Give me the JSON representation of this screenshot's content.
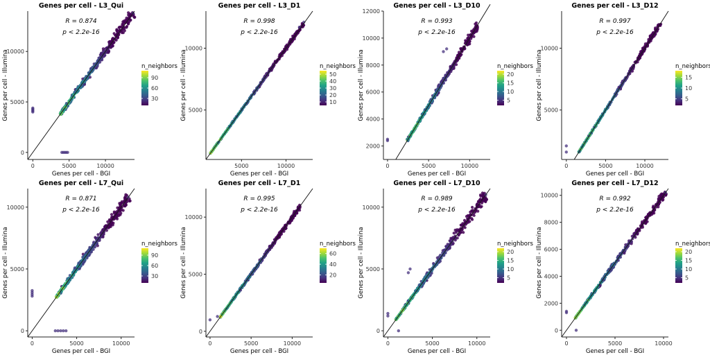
{
  "figure_title": "Genes per cell scatter plots",
  "colors": {
    "viridis": [
      "#440154",
      "#46327e",
      "#365c8d",
      "#277f8e",
      "#1fa187",
      "#4ac16d",
      "#a0da39",
      "#fde725"
    ],
    "line": "#1a1a1a",
    "axis": "#222222",
    "text": "#000000"
  },
  "chart_data": [
    {
      "type": "scatter",
      "title": "Genes per cell - L3_Qui",
      "xlabel": "Genes per cell - BGI",
      "ylabel": "Genes per cell - Illumina",
      "r_label": "R = 0.874",
      "p_label": "p < 2.2e-16",
      "R": 0.874,
      "xlim": [
        -700,
        14000
      ],
      "ylim": [
        -700,
        14000
      ],
      "xticks": [
        0,
        5000,
        10000
      ],
      "yticks": [
        0,
        5000,
        10000
      ],
      "xtick_labels": [
        "0",
        "5000",
        "10000"
      ],
      "ytick_labels": [
        "0",
        "5000",
        "10000"
      ],
      "legend": {
        "title": "n_neighbors",
        "min": 10,
        "max": 110,
        "ticks": [
          90,
          60,
          30
        ],
        "tick_labels": [
          "90",
          "60",
          "30"
        ]
      },
      "identity_line": [
        [
          -700,
          -700
        ],
        [
          14000,
          14000
        ]
      ],
      "cloud": {
        "from": 3800,
        "to": 13800,
        "spread": 0.05
      },
      "outliers": [
        [
          0,
          4000
        ],
        [
          0,
          4100
        ],
        [
          0,
          4200
        ],
        [
          0,
          4300
        ],
        [
          0,
          4400
        ],
        [
          4000,
          0
        ],
        [
          4200,
          0
        ],
        [
          4400,
          0
        ],
        [
          4600,
          0
        ],
        [
          4800,
          0
        ],
        [
          13800,
          13800
        ]
      ]
    },
    {
      "type": "scatter",
      "title": "Genes per cell - L3_D1",
      "xlabel": "Genes per cell - BGI",
      "ylabel": "Genes per cell - Illumina",
      "r_label": "R = 0.998",
      "p_label": "p < 2.2e-16",
      "R": 0.998,
      "xlim": [
        1000,
        13000
      ],
      "ylim": [
        1000,
        13000
      ],
      "xticks": [
        5000,
        10000
      ],
      "yticks": [
        5000,
        10000
      ],
      "xtick_labels": [
        "5000",
        "10000"
      ],
      "ytick_labels": [
        "5000",
        "10000"
      ],
      "legend": {
        "title": "n_neighbors",
        "min": 5,
        "max": 55,
        "ticks": [
          50,
          40,
          30,
          20,
          10
        ],
        "tick_labels": [
          "50",
          "40",
          "30",
          "20",
          "10"
        ]
      },
      "identity_line": [
        [
          1000,
          1000
        ],
        [
          13000,
          13000
        ]
      ],
      "cloud": {
        "from": 1500,
        "to": 12000,
        "spread": 0.02
      },
      "outliers": [
        [
          11500,
          11700
        ],
        [
          12000,
          12100
        ]
      ]
    },
    {
      "type": "scatter",
      "title": "Genes per cell - L3_D10",
      "xlabel": "Genes per cell - BGI",
      "ylabel": "Genes per cell - Illumina",
      "r_label": "R = 0.993",
      "p_label": "p < 2.2e-16",
      "R": 0.993,
      "xlim": [
        -500,
        12500
      ],
      "ylim": [
        1000,
        12000
      ],
      "xticks": [
        0,
        5000,
        10000
      ],
      "yticks": [
        2000,
        4000,
        6000,
        8000,
        10000,
        12000
      ],
      "xtick_labels": [
        "0",
        "5000",
        "10000"
      ],
      "ytick_labels": [
        "2000",
        "4000",
        "6000",
        "8000",
        "10000",
        "12000"
      ],
      "legend": {
        "title": "n_neighbors",
        "min": 2,
        "max": 22,
        "ticks": [
          20,
          15,
          10,
          5
        ],
        "tick_labels": [
          "20",
          "15",
          "10",
          "5"
        ]
      },
      "identity_line": [
        [
          1000,
          1000
        ],
        [
          12500,
          12500
        ]
      ],
      "cloud": {
        "from": 2400,
        "to": 11000,
        "spread": 0.04
      },
      "outliers": [
        [
          0,
          2400
        ],
        [
          0,
          2500
        ],
        [
          6800,
          9000
        ],
        [
          7200,
          9200
        ]
      ]
    },
    {
      "type": "scatter",
      "title": "Genes per cell - L3_D12",
      "xlabel": "Genes per cell - BGI",
      "ylabel": "Genes per cell - Illumina",
      "r_label": "R = 0.997",
      "p_label": "p < 2.2e-16",
      "R": 0.997,
      "xlim": [
        -600,
        13000
      ],
      "ylim": [
        1000,
        13000
      ],
      "xticks": [
        0,
        5000,
        10000
      ],
      "yticks": [
        5000,
        10000
      ],
      "xtick_labels": [
        "0",
        "5000",
        "10000"
      ],
      "ytick_labels": [
        "5000",
        "10000"
      ],
      "legend": {
        "title": "n_neighbors",
        "min": 2,
        "max": 18,
        "ticks": [
          15,
          10,
          5
        ],
        "tick_labels": [
          "15",
          "10",
          "5"
        ]
      },
      "identity_line": [
        [
          1000,
          1000
        ],
        [
          13000,
          13000
        ]
      ],
      "cloud": {
        "from": 1600,
        "to": 12000,
        "spread": 0.025
      },
      "outliers": [
        [
          0,
          1600
        ],
        [
          0,
          2100
        ]
      ]
    },
    {
      "type": "scatter",
      "title": "Genes per cell - L7_Qui",
      "xlabel": "Genes per cell - BGI",
      "ylabel": "Genes per cell - Illumina",
      "r_label": "R = 0.871",
      "p_label": "p < 2.2e-16",
      "R": 0.871,
      "xlim": [
        -500,
        11500
      ],
      "ylim": [
        -500,
        11500
      ],
      "xticks": [
        0,
        5000,
        10000
      ],
      "yticks": [
        0,
        5000,
        10000
      ],
      "xtick_labels": [
        "0",
        "5000",
        "10000"
      ],
      "ytick_labels": [
        "0",
        "5000",
        "10000"
      ],
      "legend": {
        "title": "n_neighbors",
        "min": 10,
        "max": 110,
        "ticks": [
          90,
          60,
          30
        ],
        "tick_labels": [
          "90",
          "60",
          "30"
        ]
      },
      "identity_line": [
        [
          -500,
          -500
        ],
        [
          11500,
          11500
        ]
      ],
      "cloud": {
        "from": 2700,
        "to": 10800,
        "spread": 0.06
      },
      "outliers": [
        [
          0,
          2800
        ],
        [
          0,
          2950
        ],
        [
          0,
          3100
        ],
        [
          0,
          3250
        ],
        [
          2600,
          0
        ],
        [
          2900,
          0
        ],
        [
          3200,
          0
        ],
        [
          3500,
          0
        ],
        [
          3800,
          0
        ],
        [
          10800,
          10800
        ]
      ]
    },
    {
      "type": "scatter",
      "title": "Genes per cell - L7_D1",
      "xlabel": "Genes per cell - BGI",
      "ylabel": "Genes per cell - Illumina",
      "r_label": "R = 0.995",
      "p_label": "p < 2.2e-16",
      "R": 0.995,
      "xlim": [
        -500,
        12500
      ],
      "ylim": [
        -500,
        12500
      ],
      "xticks": [
        0,
        5000,
        10000
      ],
      "yticks": [
        0,
        5000,
        10000
      ],
      "xtick_labels": [
        "0",
        "5000",
        "10000"
      ],
      "ytick_labels": [
        "0",
        "5000",
        "10000"
      ],
      "legend": {
        "title": "n_neighbors",
        "min": 5,
        "max": 70,
        "ticks": [
          60,
          40,
          20
        ],
        "tick_labels": [
          "60",
          "40",
          "20"
        ]
      },
      "identity_line": [
        [
          -500,
          -500
        ],
        [
          12500,
          12500
        ]
      ],
      "cloud": {
        "from": 1200,
        "to": 11000,
        "spread": 0.03
      },
      "outliers": [
        [
          0,
          1000
        ],
        [
          900,
          1300
        ]
      ]
    },
    {
      "type": "scatter",
      "title": "Genes per cell - L7_D10",
      "xlabel": "Genes per cell - BGI",
      "ylabel": "Genes per cell - Illumina",
      "r_label": "R = 0.989",
      "p_label": "p < 2.2e-16",
      "R": 0.989,
      "xlim": [
        -500,
        11500
      ],
      "ylim": [
        -500,
        11500
      ],
      "xticks": [
        0,
        5000,
        10000
      ],
      "yticks": [
        0,
        5000,
        10000
      ],
      "xtick_labels": [
        "0",
        "5000",
        "10000"
      ],
      "ytick_labels": [
        "0",
        "5000",
        "10000"
      ],
      "legend": {
        "title": "n_neighbors",
        "min": 2,
        "max": 22,
        "ticks": [
          20,
          15,
          10,
          5
        ],
        "tick_labels": [
          "20",
          "15",
          "10",
          "5"
        ]
      },
      "identity_line": [
        [
          -500,
          -500
        ],
        [
          11500,
          11500
        ]
      ],
      "cloud": {
        "from": 900,
        "to": 11000,
        "spread": 0.06
      },
      "outliers": [
        [
          0,
          1200
        ],
        [
          0,
          1400
        ],
        [
          1200,
          0
        ],
        [
          2300,
          4700
        ],
        [
          2500,
          5000
        ],
        [
          11000,
          11000
        ]
      ]
    },
    {
      "type": "scatter",
      "title": "Genes per cell - L7_D12",
      "xlabel": "Genes per cell - BGI",
      "ylabel": "Genes per cell - Illumina",
      "r_label": "R = 0.992",
      "p_label": "p < 2.2e-16",
      "R": 0.992,
      "xlim": [
        -500,
        10500
      ],
      "ylim": [
        -500,
        10500
      ],
      "xticks": [
        0,
        5000,
        10000
      ],
      "yticks": [
        0,
        2000,
        4000,
        6000,
        8000,
        10000
      ],
      "xtick_labels": [
        "0",
        "5000",
        "10000"
      ],
      "ytick_labels": [
        "0",
        "2000",
        "4000",
        "6000",
        "8000",
        "10000"
      ],
      "legend": {
        "title": "n_neighbors",
        "min": 2,
        "max": 22,
        "ticks": [
          20,
          15,
          10,
          5
        ],
        "tick_labels": [
          "20",
          "15",
          "10",
          "5"
        ]
      },
      "identity_line": [
        [
          -500,
          -500
        ],
        [
          10500,
          10500
        ]
      ],
      "cloud": {
        "from": 900,
        "to": 10200,
        "spread": 0.04
      },
      "outliers": [
        [
          0,
          1300
        ],
        [
          0,
          1400
        ],
        [
          1000,
          0
        ],
        [
          10200,
          10200
        ]
      ]
    }
  ]
}
